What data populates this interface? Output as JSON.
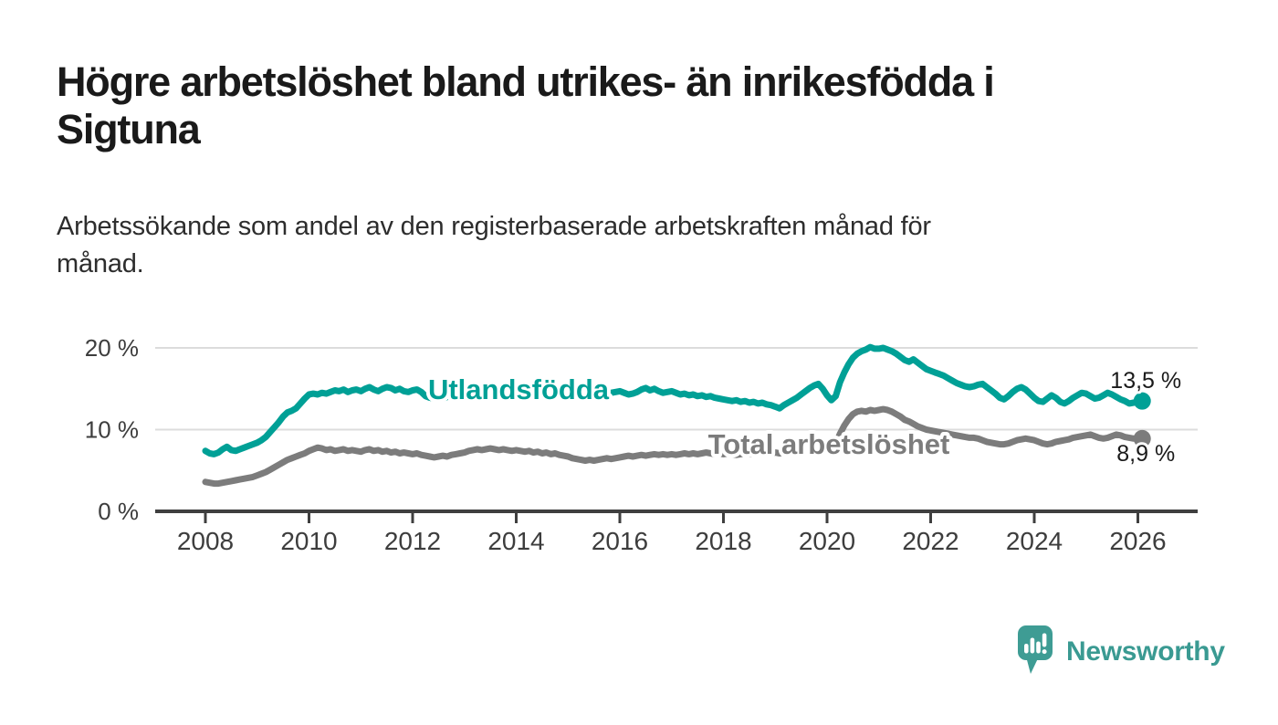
{
  "header": {
    "title_lines": [
      "Högre arbetslöshet bland utrikes- än inrikesfödda i",
      "Sigtuna"
    ],
    "subtitle_lines": [
      "Arbetssökande som andel av den registerbaserade arbetskraften månad för",
      "månad."
    ]
  },
  "chart_data": {
    "type": "line",
    "title": "Högre arbetslöshet bland utrikes- än inrikesfödda i Sigtuna",
    "subtitle": "Arbetssökande som andel av den registerbaserade arbetskraften månad för månad.",
    "x_unit": "year-month",
    "x_start_year": 2008,
    "points_per_year": 12,
    "xlim": [
      2007.0,
      2027.1
    ],
    "ylim": [
      0,
      22
    ],
    "grid": "horizontal",
    "legend_position": "inline-labels",
    "x_ticks": [
      {
        "value": 2008,
        "label": "2008"
      },
      {
        "value": 2010,
        "label": "2010"
      },
      {
        "value": 2012,
        "label": "2012"
      },
      {
        "value": 2014,
        "label": "2014"
      },
      {
        "value": 2016,
        "label": "2016"
      },
      {
        "value": 2018,
        "label": "2018"
      },
      {
        "value": 2020,
        "label": "2020"
      },
      {
        "value": 2022,
        "label": "2022"
      },
      {
        "value": 2024,
        "label": "2024"
      },
      {
        "value": 2026,
        "label": "2026"
      }
    ],
    "y_ticks": [
      {
        "value": 0,
        "label": "0 %"
      },
      {
        "value": 10,
        "label": "10 %"
      },
      {
        "value": 20,
        "label": "20 %"
      }
    ],
    "series": [
      {
        "key": "utlandsfodda",
        "name": "Utlandsfödda",
        "color": "#00a096",
        "end_label": "13,5 %",
        "end_value": 13.5,
        "values": [
          7.4,
          7.1,
          7.0,
          7.2,
          7.6,
          7.9,
          7.5,
          7.4,
          7.6,
          7.8,
          8.0,
          8.2,
          8.4,
          8.7,
          9.1,
          9.7,
          10.3,
          10.9,
          11.6,
          12.1,
          12.3,
          12.6,
          13.2,
          13.8,
          14.3,
          14.4,
          14.3,
          14.5,
          14.4,
          14.6,
          14.8,
          14.7,
          14.9,
          14.6,
          14.8,
          14.9,
          14.7,
          15.0,
          15.2,
          14.9,
          14.7,
          15.0,
          15.2,
          15.1,
          14.8,
          15.0,
          14.7,
          14.6,
          14.8,
          14.9,
          14.6,
          14.1,
          13.9,
          13.8,
          13.9,
          13.8,
          14.0,
          14.1,
          14.2,
          14.2,
          14.3,
          14.5,
          14.7,
          14.5,
          14.6,
          14.8,
          14.6,
          14.7,
          14.5,
          14.6,
          14.4,
          14.5,
          14.6,
          14.4,
          14.5,
          14.3,
          14.5,
          14.4,
          14.2,
          14.4,
          14.3,
          14.5,
          14.3,
          14.4,
          14.5,
          14.3,
          14.4,
          14.2,
          14.4,
          14.3,
          14.5,
          14.4,
          14.6,
          14.4,
          14.5,
          14.6,
          14.7,
          14.5,
          14.3,
          14.4,
          14.6,
          14.9,
          15.1,
          14.8,
          15.0,
          14.7,
          14.5,
          14.6,
          14.7,
          14.5,
          14.3,
          14.4,
          14.2,
          14.3,
          14.1,
          14.2,
          14.0,
          14.1,
          13.9,
          13.8,
          13.7,
          13.6,
          13.5,
          13.6,
          13.4,
          13.5,
          13.3,
          13.4,
          13.2,
          13.3,
          13.1,
          13.0,
          12.8,
          12.6,
          13.0,
          13.3,
          13.6,
          13.9,
          14.3,
          14.7,
          15.1,
          15.4,
          15.6,
          15.0,
          14.2,
          13.6,
          14.1,
          15.8,
          17.0,
          18.0,
          18.8,
          19.3,
          19.6,
          19.8,
          20.1,
          19.9,
          19.9,
          20.0,
          19.8,
          19.6,
          19.3,
          18.9,
          18.5,
          18.3,
          18.6,
          18.2,
          17.8,
          17.4,
          17.2,
          17.0,
          16.8,
          16.6,
          16.3,
          16.0,
          15.7,
          15.5,
          15.3,
          15.2,
          15.3,
          15.5,
          15.6,
          15.2,
          14.8,
          14.4,
          13.9,
          13.7,
          14.1,
          14.6,
          15.0,
          15.2,
          14.9,
          14.4,
          13.9,
          13.5,
          13.4,
          13.8,
          14.2,
          13.9,
          13.4,
          13.2,
          13.5,
          13.9,
          14.2,
          14.5,
          14.4,
          14.1,
          13.8,
          13.9,
          14.2,
          14.5,
          14.3,
          14.0,
          13.7,
          13.5,
          13.2,
          13.3,
          13.4,
          13.5
        ]
      },
      {
        "key": "total",
        "name": "Total arbetslöshet",
        "color": "#7c7c7c",
        "end_label": "8,9 %",
        "end_value": 8.9,
        "values": [
          3.6,
          3.5,
          3.4,
          3.4,
          3.5,
          3.6,
          3.7,
          3.8,
          3.9,
          4.0,
          4.1,
          4.2,
          4.4,
          4.6,
          4.8,
          5.1,
          5.4,
          5.7,
          6.0,
          6.3,
          6.5,
          6.7,
          6.9,
          7.1,
          7.4,
          7.6,
          7.8,
          7.7,
          7.5,
          7.6,
          7.4,
          7.5,
          7.6,
          7.4,
          7.5,
          7.4,
          7.3,
          7.5,
          7.6,
          7.4,
          7.5,
          7.3,
          7.4,
          7.2,
          7.3,
          7.1,
          7.2,
          7.1,
          7.0,
          7.1,
          6.9,
          6.8,
          6.7,
          6.6,
          6.7,
          6.8,
          6.7,
          6.9,
          7.0,
          7.1,
          7.2,
          7.4,
          7.5,
          7.6,
          7.5,
          7.6,
          7.7,
          7.6,
          7.5,
          7.6,
          7.5,
          7.4,
          7.5,
          7.4,
          7.3,
          7.4,
          7.2,
          7.3,
          7.1,
          7.2,
          7.0,
          7.1,
          6.9,
          6.8,
          6.7,
          6.5,
          6.4,
          6.3,
          6.2,
          6.3,
          6.2,
          6.3,
          6.4,
          6.5,
          6.4,
          6.5,
          6.6,
          6.7,
          6.8,
          6.7,
          6.8,
          6.9,
          6.8,
          6.9,
          7.0,
          6.9,
          7.0,
          6.9,
          7.0,
          6.9,
          7.0,
          7.1,
          7.0,
          7.1,
          7.0,
          7.1,
          7.2,
          7.1,
          7.0,
          7.1,
          7.0,
          7.1,
          7.0,
          6.9,
          7.0,
          7.1,
          7.0,
          7.1,
          7.2,
          7.1,
          7.2,
          7.1,
          7.2,
          7.1,
          7.2,
          7.3,
          7.2,
          7.3,
          7.4,
          7.5,
          7.4,
          7.5,
          7.6,
          7.7,
          7.8,
          7.7,
          8.2,
          9.5,
          10.5,
          11.3,
          11.9,
          12.2,
          12.3,
          12.2,
          12.4,
          12.3,
          12.4,
          12.5,
          12.4,
          12.2,
          11.9,
          11.6,
          11.2,
          11.0,
          10.7,
          10.4,
          10.2,
          10.0,
          9.9,
          9.8,
          9.7,
          9.6,
          9.5,
          9.4,
          9.3,
          9.2,
          9.1,
          9.0,
          9.0,
          8.9,
          8.7,
          8.5,
          8.4,
          8.3,
          8.2,
          8.2,
          8.3,
          8.5,
          8.7,
          8.8,
          8.9,
          8.8,
          8.7,
          8.5,
          8.3,
          8.2,
          8.3,
          8.5,
          8.6,
          8.7,
          8.8,
          9.0,
          9.1,
          9.2,
          9.3,
          9.4,
          9.2,
          9.0,
          8.9,
          9.0,
          9.2,
          9.4,
          9.3,
          9.1,
          9.0,
          8.9,
          8.9,
          8.9
        ]
      }
    ],
    "colors": {
      "grid": "#dcdcdc",
      "axis": "#3f3f3f",
      "tick_label": "#3d3d3d",
      "end_label_text": "#1a1a1a",
      "background": "#ffffff"
    }
  },
  "footer": {
    "brand": "Newsworthy",
    "brand_color": "#3a9a92",
    "logo_icon": "newsworthy-speech-bubble-chart-icon",
    "logo_color": "#3e9c94"
  }
}
